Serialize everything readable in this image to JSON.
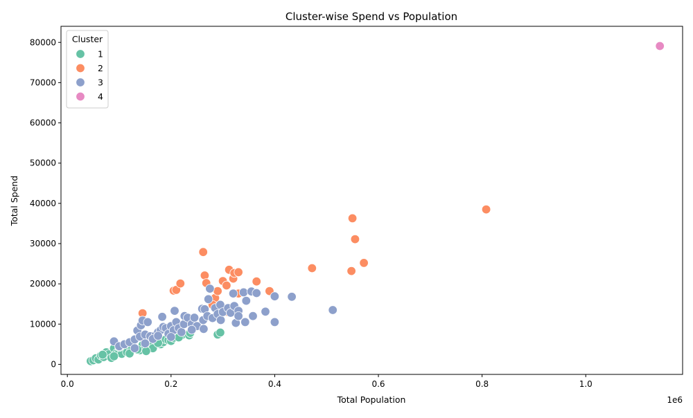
{
  "chart_data": {
    "type": "scatter",
    "title": "Cluster-wise Spend vs Population",
    "xlabel": "Total Population",
    "ylabel": "Total Spend",
    "x_offset_label": "1e6",
    "xlim": [
      -0.0123,
      1.1868
    ],
    "ylim": [
      -2500,
      84000
    ],
    "x_ticks": [
      0.0,
      0.2,
      0.4,
      0.6,
      0.8,
      1.0
    ],
    "x_tick_labels": [
      "0.0",
      "0.2",
      "0.4",
      "0.6",
      "0.8",
      "1.0"
    ],
    "y_ticks": [
      0,
      10000,
      20000,
      30000,
      40000,
      50000,
      60000,
      70000,
      80000
    ],
    "y_tick_labels": [
      "0",
      "10000",
      "20000",
      "30000",
      "40000",
      "50000",
      "60000",
      "70000",
      "80000"
    ],
    "grid": false,
    "legend": {
      "title": "Cluster",
      "position": "top-left",
      "entries": [
        "1",
        "2",
        "3",
        "4"
      ]
    },
    "series": [
      {
        "name": "1",
        "color": "#66c2a5",
        "points": [
          [
            0.045,
            800
          ],
          [
            0.05,
            1000
          ],
          [
            0.055,
            1500
          ],
          [
            0.06,
            1200
          ],
          [
            0.065,
            2200
          ],
          [
            0.07,
            1800
          ],
          [
            0.075,
            3000
          ],
          [
            0.08,
            2500
          ],
          [
            0.085,
            1600
          ],
          [
            0.09,
            4000
          ],
          [
            0.095,
            2800
          ],
          [
            0.1,
            3200
          ],
          [
            0.105,
            2600
          ],
          [
            0.11,
            4800
          ],
          [
            0.115,
            3000
          ],
          [
            0.12,
            4500
          ],
          [
            0.125,
            3900
          ],
          [
            0.13,
            4100
          ],
          [
            0.14,
            3500
          ],
          [
            0.145,
            4800
          ],
          [
            0.15,
            4000
          ],
          [
            0.155,
            5500
          ],
          [
            0.16,
            4400
          ],
          [
            0.165,
            4000
          ],
          [
            0.17,
            6000
          ],
          [
            0.18,
            5000
          ],
          [
            0.185,
            5500
          ],
          [
            0.19,
            6200
          ],
          [
            0.195,
            6000
          ],
          [
            0.2,
            5800
          ],
          [
            0.21,
            6800
          ],
          [
            0.22,
            7200
          ],
          [
            0.235,
            7200
          ],
          [
            0.237,
            7800
          ],
          [
            0.29,
            7400
          ],
          [
            0.295,
            7900
          ],
          [
            0.068,
            2400
          ],
          [
            0.09,
            2000
          ],
          [
            0.1,
            4300
          ],
          [
            0.12,
            2700
          ],
          [
            0.135,
            3700
          ],
          [
            0.152,
            3300
          ],
          [
            0.175,
            5300
          ],
          [
            0.205,
            6600
          ],
          [
            0.215,
            6700
          ]
        ]
      },
      {
        "name": "2",
        "color": "#fc8d62",
        "points": [
          [
            0.145,
            12700
          ],
          [
            0.205,
            18300
          ],
          [
            0.21,
            18500
          ],
          [
            0.218,
            20100
          ],
          [
            0.262,
            27900
          ],
          [
            0.265,
            22100
          ],
          [
            0.268,
            20200
          ],
          [
            0.28,
            15000
          ],
          [
            0.285,
            16500
          ],
          [
            0.29,
            18200
          ],
          [
            0.3,
            20700
          ],
          [
            0.307,
            19600
          ],
          [
            0.31,
            13000
          ],
          [
            0.312,
            23500
          ],
          [
            0.32,
            21300
          ],
          [
            0.322,
            22700
          ],
          [
            0.33,
            17600
          ],
          [
            0.33,
            22900
          ],
          [
            0.365,
            20600
          ],
          [
            0.39,
            18200
          ],
          [
            0.472,
            23900
          ],
          [
            0.548,
            23200
          ],
          [
            0.55,
            36300
          ],
          [
            0.555,
            31100
          ],
          [
            0.572,
            25200
          ],
          [
            0.808,
            38500
          ],
          [
            0.28,
            14800
          ]
        ]
      },
      {
        "name": "3",
        "color": "#8da0cb",
        "points": [
          [
            0.09,
            5700
          ],
          [
            0.1,
            4500
          ],
          [
            0.11,
            5000
          ],
          [
            0.12,
            5500
          ],
          [
            0.13,
            6200
          ],
          [
            0.135,
            8400
          ],
          [
            0.14,
            6900
          ],
          [
            0.142,
            9700
          ],
          [
            0.145,
            10900
          ],
          [
            0.15,
            7400
          ],
          [
            0.155,
            10500
          ],
          [
            0.16,
            7000
          ],
          [
            0.17,
            7200
          ],
          [
            0.175,
            8000
          ],
          [
            0.18,
            8500
          ],
          [
            0.183,
            11800
          ],
          [
            0.185,
            9300
          ],
          [
            0.19,
            9000
          ],
          [
            0.195,
            7600
          ],
          [
            0.2,
            9500
          ],
          [
            0.205,
            8500
          ],
          [
            0.207,
            13300
          ],
          [
            0.21,
            10500
          ],
          [
            0.215,
            9000
          ],
          [
            0.22,
            8000
          ],
          [
            0.225,
            10000
          ],
          [
            0.226,
            12000
          ],
          [
            0.232,
            11600
          ],
          [
            0.24,
            10000
          ],
          [
            0.245,
            11600
          ],
          [
            0.25,
            9500
          ],
          [
            0.26,
            13800
          ],
          [
            0.262,
            11000
          ],
          [
            0.263,
            8800
          ],
          [
            0.265,
            13700
          ],
          [
            0.27,
            12000
          ],
          [
            0.272,
            16200
          ],
          [
            0.275,
            18800
          ],
          [
            0.28,
            11500
          ],
          [
            0.285,
            14000
          ],
          [
            0.29,
            12500
          ],
          [
            0.295,
            14800
          ],
          [
            0.296,
            11000
          ],
          [
            0.3,
            13000
          ],
          [
            0.31,
            14000
          ],
          [
            0.315,
            12800
          ],
          [
            0.32,
            17600
          ],
          [
            0.322,
            14500
          ],
          [
            0.325,
            10300
          ],
          [
            0.33,
            13300
          ],
          [
            0.33,
            12000
          ],
          [
            0.34,
            17900
          ],
          [
            0.343,
            10500
          ],
          [
            0.345,
            15800
          ],
          [
            0.355,
            18100
          ],
          [
            0.358,
            12000
          ],
          [
            0.365,
            17700
          ],
          [
            0.382,
            13100
          ],
          [
            0.4,
            16900
          ],
          [
            0.4,
            10500
          ],
          [
            0.433,
            16800
          ],
          [
            0.512,
            13500
          ],
          [
            0.13,
            4000
          ],
          [
            0.15,
            5200
          ],
          [
            0.165,
            6300
          ],
          [
            0.2,
            6800
          ],
          [
            0.175,
            7100
          ],
          [
            0.24,
            8600
          ]
        ]
      },
      {
        "name": "4",
        "color": "#e78ac3",
        "points": [
          [
            1.143,
            79100
          ]
        ]
      }
    ]
  }
}
